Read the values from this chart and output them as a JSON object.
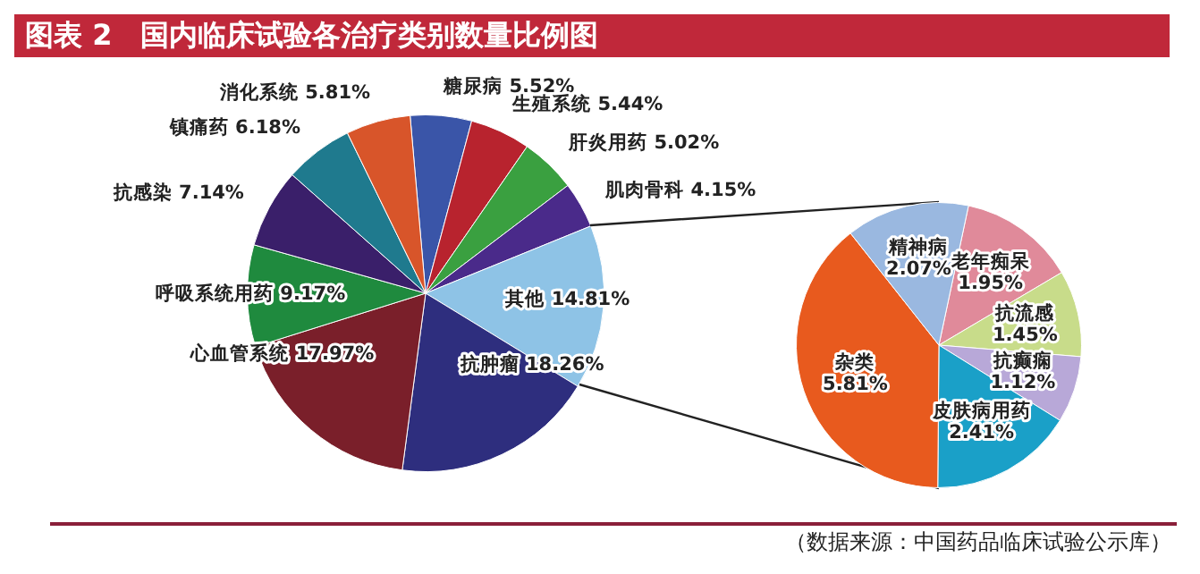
{
  "chart_data": [
    {
      "type": "pie",
      "title": "图表 2　国内临床试验各治疗类别数量比例图",
      "categories": [
        "糖尿病",
        "生殖系统",
        "肝炎用药",
        "肌肉骨科",
        "其他",
        "抗肿瘤",
        "心血管系统",
        "呼吸系统用药",
        "抗感染",
        "镇痛药",
        "消化系统"
      ],
      "values": [
        5.52,
        5.44,
        5.02,
        4.15,
        14.81,
        18.26,
        17.97,
        9.17,
        7.14,
        6.18,
        5.81
      ],
      "value_labels": [
        "5.52%",
        "5.44%",
        "5.02%",
        "4.15%",
        "14.81%",
        "18.26%",
        "17.97%",
        "9.17%",
        "7.14%",
        "6.18%",
        "5.81%"
      ],
      "colors": [
        "#3a55a8",
        "#b8232e",
        "#3aa040",
        "#4a2a8a",
        "#8ec3e6",
        "#2e2e7e",
        "#7a1f2a",
        "#1f8a3e",
        "#3a1f6a",
        "#1f7a8e",
        "#d8552a"
      ],
      "annotations": [
        "（数据来源：中国药品临床试验公示库）"
      ]
    },
    {
      "type": "pie",
      "categories": [
        "老年痴呆",
        "抗流感",
        "抗癫痫",
        "皮肤病用药",
        "杂类",
        "精神病"
      ],
      "values": [
        1.95,
        1.45,
        1.12,
        2.41,
        5.81,
        2.07
      ],
      "value_labels": [
        "1.95%",
        "1.45%",
        "1.12%",
        "2.41%",
        "5.81%",
        "2.07%"
      ],
      "colors": [
        "#e08a9a",
        "#c8dc8a",
        "#b8a8d8",
        "#1aa0c8",
        "#e85a1e",
        "#9ab8e0"
      ]
    }
  ]
}
